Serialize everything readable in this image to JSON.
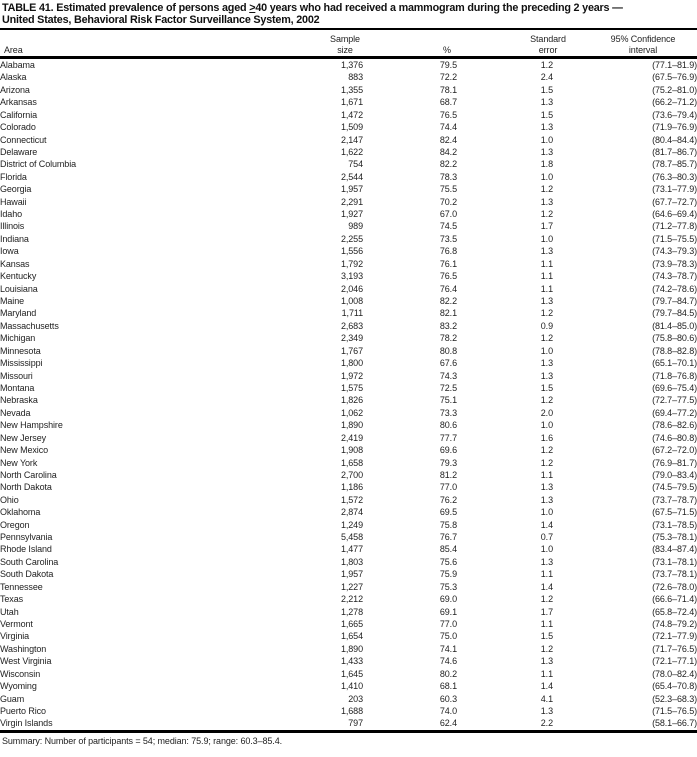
{
  "title": {
    "prefix": "TABLE 41. Estimated prevalence of persons aged ",
    "geq_symbol": ">",
    "suffix": "40 years who had received a mammogram during the preceding 2 years —",
    "line2": "United States, Behavioral Risk Factor Surveillance System, 2002"
  },
  "headers": {
    "area": "Area",
    "sample_line1": "Sample",
    "sample_line2": "size",
    "percent": "%",
    "se_line1": "Standard",
    "se_line2": "error",
    "ci_line1": "95% Confidence",
    "ci_line2": "interval"
  },
  "table": {
    "rows": [
      {
        "area": "Alabama",
        "sample": "1,376",
        "pct": "79.5",
        "se": "1.2",
        "ci": "(77.1–81.9)"
      },
      {
        "area": "Alaska",
        "sample": "883",
        "pct": "72.2",
        "se": "2.4",
        "ci": "(67.5–76.9)"
      },
      {
        "area": "Arizona",
        "sample": "1,355",
        "pct": "78.1",
        "se": "1.5",
        "ci": "(75.2–81.0)"
      },
      {
        "area": "Arkansas",
        "sample": "1,671",
        "pct": "68.7",
        "se": "1.3",
        "ci": "(66.2–71.2)"
      },
      {
        "area": "California",
        "sample": "1,472",
        "pct": "76.5",
        "se": "1.5",
        "ci": "(73.6–79.4)"
      },
      {
        "area": "Colorado",
        "sample": "1,509",
        "pct": "74.4",
        "se": "1.3",
        "ci": "(71.9–76.9)"
      },
      {
        "area": "Connecticut",
        "sample": "2,147",
        "pct": "82.4",
        "se": "1.0",
        "ci": "(80.4–84.4)"
      },
      {
        "area": "Delaware",
        "sample": "1,622",
        "pct": "84.2",
        "se": "1.3",
        "ci": "(81.7–86.7)"
      },
      {
        "area": "District of Columbia",
        "sample": "754",
        "pct": "82.2",
        "se": "1.8",
        "ci": "(78.7–85.7)"
      },
      {
        "area": "Florida",
        "sample": "2,544",
        "pct": "78.3",
        "se": "1.0",
        "ci": "(76.3–80.3)"
      },
      {
        "area": "Georgia",
        "sample": "1,957",
        "pct": "75.5",
        "se": "1.2",
        "ci": "(73.1–77.9)"
      },
      {
        "area": "Hawaii",
        "sample": "2,291",
        "pct": "70.2",
        "se": "1.3",
        "ci": "(67.7–72.7)"
      },
      {
        "area": "Idaho",
        "sample": "1,927",
        "pct": "67.0",
        "se": "1.2",
        "ci": "(64.6–69.4)"
      },
      {
        "area": "Illinois",
        "sample": "989",
        "pct": "74.5",
        "se": "1.7",
        "ci": "(71.2–77.8)"
      },
      {
        "area": "Indiana",
        "sample": "2,255",
        "pct": "73.5",
        "se": "1.0",
        "ci": "(71.5–75.5)"
      },
      {
        "area": "Iowa",
        "sample": "1,556",
        "pct": "76.8",
        "se": "1.3",
        "ci": "(74.3–79.3)"
      },
      {
        "area": "Kansas",
        "sample": "1,792",
        "pct": "76.1",
        "se": "1.1",
        "ci": "(73.9–78.3)"
      },
      {
        "area": "Kentucky",
        "sample": "3,193",
        "pct": "76.5",
        "se": "1.1",
        "ci": "(74.3–78.7)"
      },
      {
        "area": "Louisiana",
        "sample": "2,046",
        "pct": "76.4",
        "se": "1.1",
        "ci": "(74.2–78.6)"
      },
      {
        "area": "Maine",
        "sample": "1,008",
        "pct": "82.2",
        "se": "1.3",
        "ci": "(79.7–84.7)"
      },
      {
        "area": "Maryland",
        "sample": "1,711",
        "pct": "82.1",
        "se": "1.2",
        "ci": "(79.7–84.5)"
      },
      {
        "area": "Massachusetts",
        "sample": "2,683",
        "pct": "83.2",
        "se": "0.9",
        "ci": "(81.4–85.0)"
      },
      {
        "area": "Michigan",
        "sample": "2,349",
        "pct": "78.2",
        "se": "1.2",
        "ci": "(75.8–80.6)"
      },
      {
        "area": "Minnesota",
        "sample": "1,767",
        "pct": "80.8",
        "se": "1.0",
        "ci": "(78.8–82.8)"
      },
      {
        "area": "Mississippi",
        "sample": "1,800",
        "pct": "67.6",
        "se": "1.3",
        "ci": "(65.1–70.1)"
      },
      {
        "area": "Missouri",
        "sample": "1,972",
        "pct": "74.3",
        "se": "1.3",
        "ci": "(71.8–76.8)"
      },
      {
        "area": "Montana",
        "sample": "1,575",
        "pct": "72.5",
        "se": "1.5",
        "ci": "(69.6–75.4)"
      },
      {
        "area": "Nebraska",
        "sample": "1,826",
        "pct": "75.1",
        "se": "1.2",
        "ci": "(72.7–77.5)"
      },
      {
        "area": "Nevada",
        "sample": "1,062",
        "pct": "73.3",
        "se": "2.0",
        "ci": "(69.4–77.2)"
      },
      {
        "area": "New Hampshire",
        "sample": "1,890",
        "pct": "80.6",
        "se": "1.0",
        "ci": "(78.6–82.6)"
      },
      {
        "area": "New Jersey",
        "sample": "2,419",
        "pct": "77.7",
        "se": "1.6",
        "ci": "(74.6–80.8)"
      },
      {
        "area": "New Mexico",
        "sample": "1,908",
        "pct": "69.6",
        "se": "1.2",
        "ci": "(67.2–72.0)"
      },
      {
        "area": "New York",
        "sample": "1,658",
        "pct": "79.3",
        "se": "1.2",
        "ci": "(76.9–81.7)"
      },
      {
        "area": "North Carolina",
        "sample": "2,700",
        "pct": "81.2",
        "se": "1.1",
        "ci": "(79.0–83.4)"
      },
      {
        "area": "North Dakota",
        "sample": "1,186",
        "pct": "77.0",
        "se": "1.3",
        "ci": "(74.5–79.5)"
      },
      {
        "area": "Ohio",
        "sample": "1,572",
        "pct": "76.2",
        "se": "1.3",
        "ci": "(73.7–78.7)"
      },
      {
        "area": "Oklahoma",
        "sample": "2,874",
        "pct": "69.5",
        "se": "1.0",
        "ci": "(67.5–71.5)"
      },
      {
        "area": "Oregon",
        "sample": "1,249",
        "pct": "75.8",
        "se": "1.4",
        "ci": "(73.1–78.5)"
      },
      {
        "area": "Pennsylvania",
        "sample": "5,458",
        "pct": "76.7",
        "se": "0.7",
        "ci": "(75.3–78.1)"
      },
      {
        "area": "Rhode Island",
        "sample": "1,477",
        "pct": "85.4",
        "se": "1.0",
        "ci": "(83.4–87.4)"
      },
      {
        "area": "South Carolina",
        "sample": "1,803",
        "pct": "75.6",
        "se": "1.3",
        "ci": "(73.1–78.1)"
      },
      {
        "area": "South Dakota",
        "sample": "1,957",
        "pct": "75.9",
        "se": "1.1",
        "ci": "(73.7–78.1)"
      },
      {
        "area": "Tennessee",
        "sample": "1,227",
        "pct": "75.3",
        "se": "1.4",
        "ci": "(72.6–78.0)"
      },
      {
        "area": "Texas",
        "sample": "2,212",
        "pct": "69.0",
        "se": "1.2",
        "ci": "(66.6–71.4)"
      },
      {
        "area": "Utah",
        "sample": "1,278",
        "pct": "69.1",
        "se": "1.7",
        "ci": "(65.8–72.4)"
      },
      {
        "area": "Vermont",
        "sample": "1,665",
        "pct": "77.0",
        "se": "1.1",
        "ci": "(74.8–79.2)"
      },
      {
        "area": "Virginia",
        "sample": "1,654",
        "pct": "75.0",
        "se": "1.5",
        "ci": "(72.1–77.9)"
      },
      {
        "area": "Washington",
        "sample": "1,890",
        "pct": "74.1",
        "se": "1.2",
        "ci": "(71.7–76.5)"
      },
      {
        "area": "West Virginia",
        "sample": "1,433",
        "pct": "74.6",
        "se": "1.3",
        "ci": "(72.1–77.1)"
      },
      {
        "area": "Wisconsin",
        "sample": "1,645",
        "pct": "80.2",
        "se": "1.1",
        "ci": "(78.0–82.4)"
      },
      {
        "area": "Wyoming",
        "sample": "1,410",
        "pct": "68.1",
        "se": "1.4",
        "ci": "(65.4–70.8)"
      },
      {
        "area": "Guam",
        "sample": "203",
        "pct": "60.3",
        "se": "4.1",
        "ci": "(52.3–68.3)"
      },
      {
        "area": "Puerto Rico",
        "sample": "1,688",
        "pct": "74.0",
        "se": "1.3",
        "ci": "(71.5–76.5)"
      },
      {
        "area": "Virgin Islands",
        "sample": "797",
        "pct": "62.4",
        "se": "2.2",
        "ci": "(58.1–66.7)"
      }
    ]
  },
  "summary": "Summary: Number of participants = 54; median: 75.9; range: 60.3–85.4.",
  "colors": {
    "text": "#1f1f1f",
    "rule": "#000000",
    "background": "#ffffff"
  }
}
